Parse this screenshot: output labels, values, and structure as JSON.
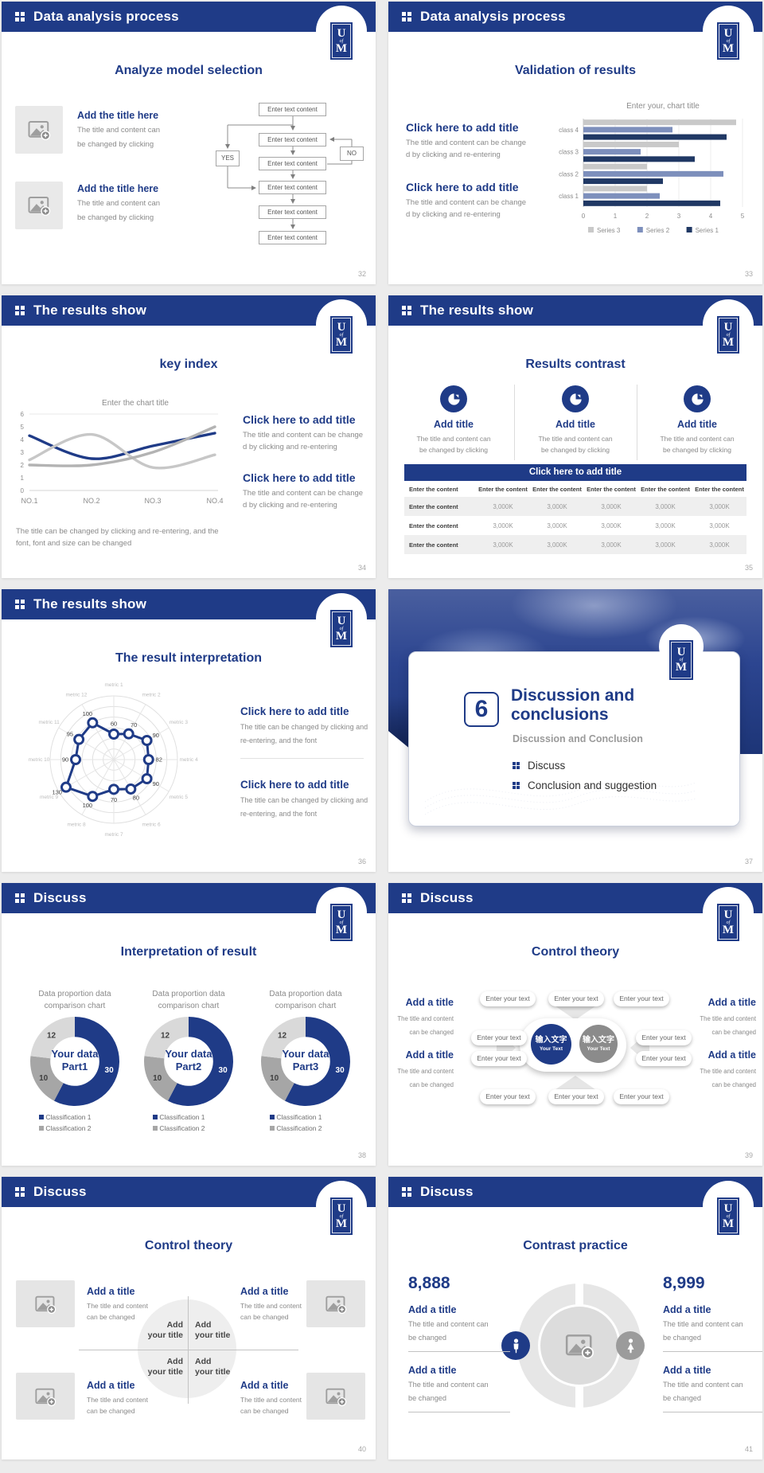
{
  "logo": {
    "top": "U",
    "mid": "of",
    "bottom": "M"
  },
  "colors": {
    "primary_blue": "#1f3b87",
    "header_blue": "#1f3b87",
    "navy_series": "#203864",
    "slate_series": "#7d8fbc",
    "light_gray_series": "#c9c9c9",
    "mid_gray": "#a6a6a6",
    "donut_light_gray": "#d9d9d9",
    "body_text_gray": "#8a8a8a",
    "page_background": "#ececec"
  },
  "slides": {
    "s1": {
      "header": "Data analysis process",
      "title": "Analyze model selection",
      "blocks": [
        {
          "title": "Add the title here",
          "line1": "The title and content can",
          "line2": "be changed by clicking"
        },
        {
          "title": "Add the title here",
          "line1": "The title and content can",
          "line2": "be changed by clicking"
        }
      ],
      "flow_label": "Enter text content",
      "yes": "YES",
      "no": "NO",
      "page": "32"
    },
    "s2": {
      "header": "Data analysis process",
      "title": "Validation of results",
      "blocks": [
        {
          "title": "Click here to add title",
          "line1": "The title and content can be change",
          "line2": "d by clicking and re-entering"
        },
        {
          "title": "Click here to add title",
          "line1": "The title and content can be change",
          "line2": "d by clicking and re-entering"
        }
      ],
      "page": "33"
    },
    "s3": {
      "header": "The results show",
      "title": "key index",
      "blocks": [
        {
          "title": "Click here to add title",
          "line1": "The title and content can be change",
          "line2": "d by clicking and re-entering"
        },
        {
          "title": "Click here to add title",
          "line1": "The title and content can be change",
          "line2": "d by clicking and re-entering"
        }
      ],
      "caption1": "The title can be changed by clicking and re-entering, and the",
      "caption2": "font, font and size can be changed",
      "page": "34"
    },
    "s4": {
      "header": "The results show",
      "title": "Results contrast",
      "columns": [
        {
          "title": "Add title",
          "line1": "The title and content can",
          "line2": "be changed by clicking"
        },
        {
          "title": "Add title",
          "line1": "The title and content can",
          "line2": "be changed by clicking"
        },
        {
          "title": "Add title",
          "line1": "The title and content can",
          "line2": "be changed by clicking"
        }
      ],
      "banner": "Click here to add title",
      "table": {
        "header": [
          "Enter the content",
          "Enter the content",
          "Enter the content",
          "Enter the content",
          "Enter the content",
          "Enter the content"
        ],
        "rows": [
          [
            "Enter the content",
            "3,000K",
            "3,000K",
            "3,000K",
            "3,000K",
            "3,000K"
          ],
          [
            "Enter the content",
            "3,000K",
            "3,000K",
            "3,000K",
            "3,000K",
            "3,000K"
          ],
          [
            "Enter the content",
            "3,000K",
            "3,000K",
            "3,000K",
            "3,000K",
            "3,000K"
          ]
        ]
      },
      "page": "35"
    },
    "s5": {
      "header": "The results show",
      "title": "The result interpretation",
      "blocks": [
        {
          "title": "Click here to add title",
          "line1": "The title can be changed by clicking and",
          "line2": "re-entering, and the font"
        },
        {
          "title": "Click here to add title",
          "line1": "The title can be changed by clicking and",
          "line2": "re-entering, and the font"
        }
      ],
      "page": "36"
    },
    "s6": {
      "number": "6",
      "title": "Discussion and conclusions",
      "subtitle": "Discussion and Conclusion",
      "bullets": [
        "Discuss",
        "Conclusion and suggestion"
      ],
      "page": "37"
    },
    "s7": {
      "header": "Discuss",
      "title": "Interpretation of result",
      "chart_title_line1": "Data proportion data",
      "chart_title_line2": "comparison chart",
      "centers": [
        {
          "line1": "Your data",
          "line2": "Part1"
        },
        {
          "line1": "Your data",
          "line2": "Part2"
        },
        {
          "line1": "Your data",
          "line2": "Part3"
        }
      ],
      "legend": [
        "Classification 1",
        "Classification 2"
      ],
      "page": "38"
    },
    "s8": {
      "header": "Discuss",
      "title": "Control theory",
      "pill": "Enter your text",
      "center_circles": [
        {
          "cn": "输入文字",
          "en": "Your Text"
        },
        {
          "cn": "输入文字",
          "en": "Your Text"
        }
      ],
      "sides": [
        {
          "title": "Add a title",
          "line1": "The title and content",
          "line2": "can be changed"
        },
        {
          "title": "Add a title",
          "line1": "The title and content",
          "line2": "can be changed"
        },
        {
          "title": "Add a title",
          "line1": "The title and content",
          "line2": "can be changed"
        },
        {
          "title": "Add a title",
          "line1": "The title and content",
          "line2": "can be changed"
        }
      ],
      "page": "39"
    },
    "s9": {
      "header": "Discuss",
      "title": "Control theory",
      "quad_line1": "Add",
      "quad_line2": "your title",
      "blocks": [
        {
          "title": "Add a title",
          "line1": "The title and content",
          "line2": "can be changed"
        },
        {
          "title": "Add a title",
          "line1": "The title and content",
          "line2": "can be changed"
        },
        {
          "title": "Add a title",
          "line1": "The title and content",
          "line2": "can be changed"
        },
        {
          "title": "Add a title",
          "line1": "The title and content",
          "line2": "can be changed"
        }
      ],
      "page": "40"
    },
    "s10": {
      "header": "Discuss",
      "title": "Contrast practice",
      "left_value": "8,888",
      "right_value": "8,999",
      "items": [
        {
          "title": "Add a title",
          "line1": "The title and content can",
          "line2": "be changed"
        },
        {
          "title": "Add a title",
          "line1": "The title and content can",
          "line2": "be changed"
        },
        {
          "title": "Add a title",
          "line1": "The title and content can",
          "line2": "be changed"
        },
        {
          "title": "Add a title",
          "line1": "The title and content can",
          "line2": "be changed"
        }
      ],
      "page": "41"
    }
  },
  "chart_data": [
    {
      "id": "bar-chart",
      "type": "bar",
      "orientation": "horizontal",
      "title": "Enter your, chart title",
      "categories": [
        "class 1",
        "class 2",
        "class 3",
        "class 4"
      ],
      "series": [
        {
          "name": "Series 1",
          "color": "#203864",
          "values": [
            4.3,
            2.5,
            3.5,
            4.5
          ]
        },
        {
          "name": "Series 2",
          "color": "#7d8fbc",
          "values": [
            2.4,
            4.4,
            1.8,
            2.8
          ]
        },
        {
          "name": "Series 3",
          "color": "#c9c9c9",
          "values": [
            2,
            2,
            3,
            4.8
          ]
        }
      ],
      "xlim": [
        0,
        5
      ],
      "xticks": [
        0,
        1,
        2,
        3,
        4,
        5
      ],
      "grid": true,
      "legend_position": "bottom"
    },
    {
      "id": "line-chart",
      "type": "line",
      "title": "Enter the chart title",
      "categories": [
        "NO.1",
        "NO.2",
        "NO.3",
        "NO.4"
      ],
      "series": [
        {
          "name": "navy",
          "color": "#1f3b87",
          "values": [
            4.3,
            2.5,
            3.5,
            4.5
          ]
        },
        {
          "name": "gray-light",
          "color": "#c7c7c7",
          "values": [
            2.4,
            4.4,
            1.8,
            2.8
          ]
        },
        {
          "name": "gray",
          "color": "#b3b3b3",
          "values": [
            2,
            2,
            3,
            5
          ]
        }
      ],
      "ylim": [
        0,
        6
      ],
      "yticks": [
        0,
        1,
        2,
        3,
        4,
        5,
        6
      ],
      "legend": false
    },
    {
      "id": "radar-chart",
      "type": "radar",
      "categories": [
        "metric 1",
        "metric 2",
        "metric 3",
        "metric 4",
        "metric 5",
        "metric 6",
        "metric 7",
        "metric 8",
        "metric 9",
        "metric 10",
        "metric 11",
        "metric 12"
      ],
      "values": [
        60,
        70,
        90,
        82,
        90,
        80,
        70,
        100,
        130,
        90,
        95,
        100
      ],
      "rmax": 150,
      "rings": 6,
      "color": "#1f3b87"
    },
    {
      "id": "donut",
      "type": "pie",
      "count": 3,
      "inner_radius_ratio": 0.55,
      "start_angle_deg": -90,
      "slices": [
        {
          "label": "30",
          "value": 30,
          "color": "#1f3b87",
          "label_color": "#ffffff"
        },
        {
          "label": "10",
          "value": 10,
          "color": "#a6a6a6",
          "label_color": "#3f3f3f"
        },
        {
          "label": "12",
          "value": 12,
          "color": "#d9d9d9",
          "label_color": "#3f3f3f"
        }
      ]
    }
  ]
}
